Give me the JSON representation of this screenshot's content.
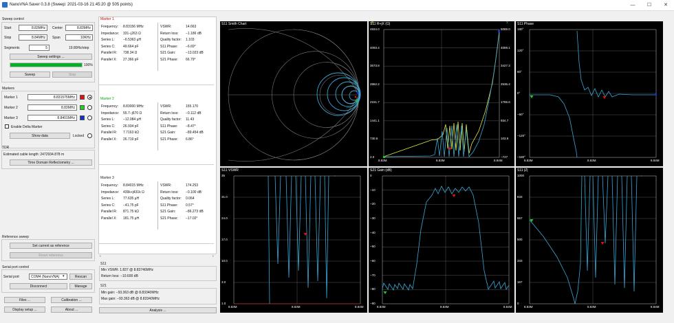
{
  "window": {
    "title": "NanoVNA Saver 0.3.8 (Sweep: 2021-03-16 21:45:20 @ 505 points)",
    "minimize": "—",
    "maximize": "☐",
    "close": "✕"
  },
  "sweep": {
    "title": "Sweep control",
    "start_label": "Start",
    "start": "8.83MHz",
    "center_label": "Center",
    "center": "8.83MHz",
    "stop_label": "Stop",
    "stop": "8.84MHz",
    "span_label": "Span",
    "span": "10KHz",
    "segments_label": "Segments",
    "segments": "5",
    "step": "19.80Hz/step",
    "settings_btn": "Sweep settings ...",
    "progress": 1.0,
    "progress_text": "100%",
    "sweep_btn": "Sweep",
    "stop_btn": "Stop"
  },
  "markers": {
    "title": "Markers",
    "items": [
      {
        "label": "Marker 1",
        "value": "8.831575MHz",
        "color": "#e01010",
        "selected": true
      },
      {
        "label": "Marker 2",
        "value": "8.83MHz",
        "color": "#22cc22",
        "selected": false
      },
      {
        "label": "Marker 3",
        "value": "8.8401MHz",
        "color": "#1030d0",
        "selected": false
      }
    ],
    "delta_label": "Enable Delta Marker",
    "show_data_btn": "Show data",
    "locked_label": "Locked"
  },
  "tdr": {
    "title": "TDR",
    "cable_length": "Estimated cable length: 2472934.878 m",
    "btn": "Time Domain Reflectometry ..."
  },
  "reference": {
    "title": "Reference sweep",
    "set_btn": "Set current as reference",
    "reset_btn": "Reset reference"
  },
  "serial": {
    "title": "Serial port control",
    "port_label": "Serial port",
    "port": "COM4 (NanoVNA)",
    "rescan_btn": "Rescan",
    "disconnect_btn": "Disconnect",
    "manage_btn": "Manage"
  },
  "bottom": {
    "files_btn": "Files ...",
    "calibration_btn": "Calibration ...",
    "display_btn": "Display setup ...",
    "about_btn": "About ...",
    "analysis_btn": "Analysis ..."
  },
  "marker_data": [
    {
      "title": "Marker 1",
      "left": [
        [
          "Frequency:",
          "8.83156 MHz"
        ],
        [
          "Impedance:",
          "331−j263 Ω"
        ],
        [
          "Series L:",
          "−6.5363 µH"
        ],
        [
          "Series C:",
          "49.664 pF"
        ],
        [
          "Parallel R:",
          "738.34 Ω"
        ],
        [
          "Parallel X:",
          "27.366 pF"
        ]
      ],
      "right": [
        [
          "VSWR:",
          "14.663"
        ],
        [
          "Return loss:",
          "−1.186 dB"
        ],
        [
          "Quality factor:",
          "1.103"
        ],
        [
          "S11 Phase:",
          "−6.69°"
        ],
        [
          "S21 Gain:",
          "−13.023 dB"
        ],
        [
          "S21 Phase:",
          "66.79°"
        ]
      ]
    },
    {
      "title": "Marker 2",
      "left": [
        [
          "Frequency:",
          "8.83000 MHz"
        ],
        [
          "Impedance:",
          "55.7−j670 Ω"
        ],
        [
          "Series L:",
          "−12.084 µH"
        ],
        [
          "Series C:",
          "26.934 pF"
        ],
        [
          "Parallel R:",
          "7.7163 kΩ"
        ],
        [
          "Parallel X:",
          "26.719 pF"
        ]
      ],
      "right": [
        [
          "VSWR:",
          "155.170"
        ],
        [
          "Return loss:",
          "−0.112 dB"
        ],
        [
          "Quality factor:",
          "11.43"
        ],
        [
          "S11 Phase:",
          "−8.47°"
        ],
        [
          "S21 Gain:",
          "−89.454 dB"
        ],
        [
          "S21 Phase:",
          "6.86°"
        ]
      ]
    },
    {
      "title": "Marker 3",
      "left": [
        [
          "Frequency:",
          "8.84015 MHz"
        ],
        [
          "Impedance:",
          "439k+j431k Ω"
        ],
        [
          "Series L:",
          "77.635 µH"
        ],
        [
          "Series C:",
          "−41.75 pF"
        ],
        [
          "Parallel R:",
          "871.75 kΩ"
        ],
        [
          "Parallel X:",
          "181.75 µH"
        ]
      ],
      "right": [
        [
          "VSWR:",
          "174.253"
        ],
        [
          "Return loss:",
          "−0.100 dB"
        ],
        [
          "Quality factor:",
          "0.064"
        ],
        [
          "S11 Phase:",
          "0.57°"
        ],
        [
          "S21 Gain:",
          "−86.273 dB"
        ],
        [
          "S21 Phase:",
          "−17.02°"
        ]
      ]
    }
  ],
  "summary": {
    "s11_title": "S11",
    "min_vswr": "Min VSWR:  1.837 @ 8.83746MHz",
    "return_loss": "Return loss: −10.600 dB",
    "s21_title": "S21",
    "min_gain": "Min gain:  −93.363 dB @ 8.83340MHz",
    "max_gain": "Max gain:  −93.363 dB @ 8.83340MHz"
  },
  "plots": {
    "smith": {
      "title": "S11 Smith Chart"
    },
    "rx": {
      "title": "S11 R+jX (Ω)",
      "legend_r": "R",
      "legend_x": "X",
      "yleft": [
        "4934.0",
        "4093.4",
        "3573.8",
        "2862.2",
        "2151.7",
        "1441.1",
        "730.6",
        "2.0"
      ],
      "yright": [
        "5089.0",
        "4059.1",
        "3427.3",
        "2536.4",
        "1765.6",
        "934.7",
        "103.9",
        "−727"
      ],
      "xlabels": [
        "8.83M",
        "8.83M",
        "8.84M"
      ]
    },
    "phase": {
      "title": "S11 Phase",
      "ylabels": [
        "180°",
        "120°",
        "60°",
        "0°",
        "−60°",
        "−120°",
        "−180°"
      ],
      "xlabels": [
        "8.83M",
        "8.83M",
        "8.84M"
      ]
    },
    "vswr": {
      "title": "S11 VSWR",
      "ylabels": [
        "35",
        "31.0",
        "24.0",
        "17.0",
        "10.0",
        "3.0",
        "1.0"
      ],
      "xlabels": [
        "8.83M",
        "8.83M",
        "8.84M"
      ]
    },
    "gain": {
      "title": "S21 Gain (dB)",
      "ylabels": [
        "0",
        "−10",
        "−20",
        "−30",
        "−40",
        "−50",
        "−60",
        "−70",
        "−80",
        "−90"
      ],
      "xlabels": [
        "8.83M",
        "8.83M",
        "8.84M"
      ]
    },
    "z": {
      "title": "S11 |Z|",
      "ylabels": [
        "1000",
        "833",
        "667",
        "500",
        "333",
        "167",
        "0"
      ],
      "xlabels": [
        "8.83M",
        "8.83M",
        "8.84M"
      ]
    }
  },
  "colors": {
    "trace": "#3aa8d8",
    "trace2": "#e6e640",
    "grid": "#5a5a5a",
    "marker1": "#e01010",
    "marker2": "#22cc22",
    "marker3": "#1030d0"
  }
}
